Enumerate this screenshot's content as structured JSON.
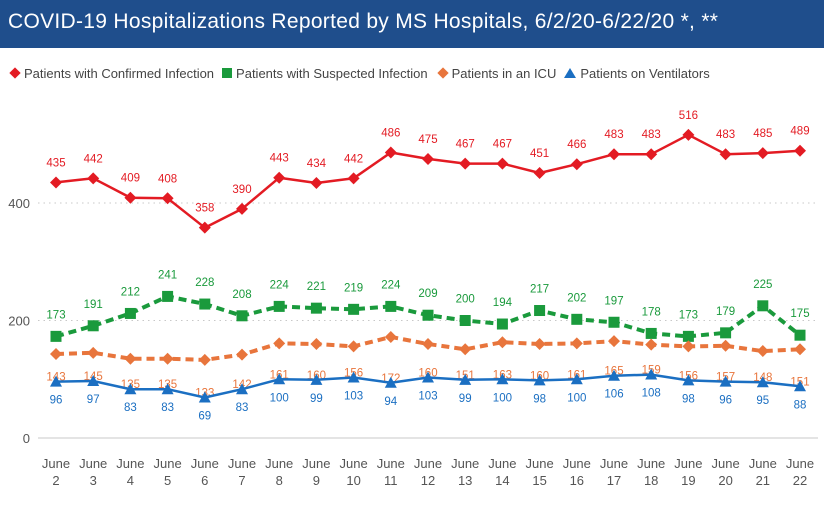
{
  "title": "COVID-19 Hospitalizations Reported by MS Hospitals, 6/2/20-6/22/20 *, **",
  "legend": [
    {
      "name": "Patients with Confirmed Infection",
      "marker": "diamond",
      "color": "#e31b23"
    },
    {
      "name": "Patients with Suspected Infection",
      "marker": "square",
      "color": "#1a9a3c"
    },
    {
      "name": "Patients in an ICU",
      "marker": "diamond",
      "color": "#e8753c"
    },
    {
      "name": "Patients on Ventilators",
      "marker": "triangle",
      "color": "#1b6fc2"
    }
  ],
  "chart_data": {
    "type": "line",
    "title": "COVID-19 Hospitalizations Reported by MS Hospitals, 6/2/20-6/22/20 *, **",
    "categories": [
      [
        "June",
        "2"
      ],
      [
        "June",
        "3"
      ],
      [
        "June",
        "4"
      ],
      [
        "June",
        "5"
      ],
      [
        "June",
        "6"
      ],
      [
        "June",
        "7"
      ],
      [
        "June",
        "8"
      ],
      [
        "June",
        "9"
      ],
      [
        "June",
        "10"
      ],
      [
        "June",
        "11"
      ],
      [
        "June",
        "12"
      ],
      [
        "June",
        "13"
      ],
      [
        "June",
        "14"
      ],
      [
        "June",
        "15"
      ],
      [
        "June",
        "16"
      ],
      [
        "June",
        "17"
      ],
      [
        "June",
        "18"
      ],
      [
        "June",
        "19"
      ],
      [
        "June",
        "20"
      ],
      [
        "June",
        "21"
      ],
      [
        "June",
        "22"
      ]
    ],
    "yticks": [
      0,
      200,
      400
    ],
    "ylim": [
      0,
      600
    ],
    "grid": true,
    "legend_position": "top-left",
    "series": [
      {
        "name": "Patients with Confirmed Infection",
        "color": "#e31b23",
        "marker": "diamond",
        "dashed": false,
        "values": [
          435,
          442,
          409,
          408,
          358,
          390,
          443,
          434,
          442,
          486,
          475,
          467,
          467,
          451,
          466,
          483,
          483,
          516,
          483,
          485,
          489
        ]
      },
      {
        "name": "Patients with Suspected Infection",
        "color": "#1a9a3c",
        "marker": "square",
        "dashed": true,
        "values": [
          173,
          191,
          212,
          241,
          228,
          208,
          224,
          221,
          219,
          224,
          209,
          200,
          194,
          217,
          202,
          197,
          178,
          173,
          179,
          225,
          175
        ]
      },
      {
        "name": "Patients in an ICU",
        "color": "#e8753c",
        "marker": "diamond",
        "dashed": true,
        "values": [
          143,
          145,
          135,
          135,
          133,
          142,
          161,
          160,
          156,
          172,
          160,
          151,
          163,
          160,
          161,
          165,
          159,
          156,
          157,
          148,
          151
        ]
      },
      {
        "name": "Patients on Ventilators",
        "color": "#1b6fc2",
        "marker": "triangle",
        "dashed": false,
        "values": [
          96,
          97,
          83,
          83,
          69,
          83,
          100,
          99,
          103,
          94,
          103,
          99,
          100,
          98,
          100,
          106,
          108,
          98,
          96,
          95,
          88
        ]
      }
    ]
  }
}
